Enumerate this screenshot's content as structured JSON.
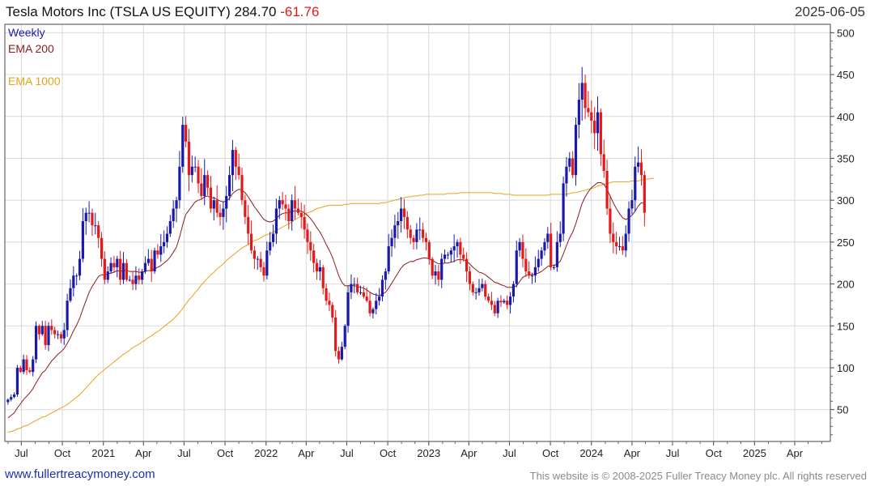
{
  "header": {
    "name": "Tesla Motors Inc (TSLA US EQUITY)",
    "price": "284.70",
    "change": "-61.76",
    "date": "2025-06-05"
  },
  "legend": {
    "frequency": "Weekly",
    "ema200_label": "EMA 200",
    "ema1000_label": "EMA 1000"
  },
  "footer": {
    "url": "www.fullertreacymoney.com",
    "copyright": "This website is © 2008-2025 Fuller Treacy Money plc. All rights reserved"
  },
  "colors": {
    "up": "#1a1aaa",
    "down": "#e31a1a",
    "ema200": "#8b1c1c",
    "ema1000": "#e8a317",
    "grid": "#d8d8d8",
    "frequency_label": "#1a1aaa"
  },
  "chart_data": {
    "type": "candlestick",
    "y_axis_side": "right",
    "ylim": [
      12,
      510
    ],
    "xlim": [
      "2020-05-25",
      "2025-06-20"
    ],
    "y_ticks": [
      50,
      100,
      150,
      200,
      250,
      300,
      350,
      400,
      450,
      500
    ],
    "x_ticks": [
      {
        "label": "Jul",
        "date": "2020-07-01"
      },
      {
        "label": "Oct",
        "date": "2020-10-01"
      },
      {
        "label": "2021",
        "date": "2021-01-01"
      },
      {
        "label": "Apr",
        "date": "2021-04-01"
      },
      {
        "label": "Jul",
        "date": "2021-07-01"
      },
      {
        "label": "Oct",
        "date": "2021-10-01"
      },
      {
        "label": "2022",
        "date": "2022-01-01"
      },
      {
        "label": "Apr",
        "date": "2022-04-01"
      },
      {
        "label": "Jul",
        "date": "2022-07-01"
      },
      {
        "label": "Oct",
        "date": "2022-10-01"
      },
      {
        "label": "2023",
        "date": "2023-01-01"
      },
      {
        "label": "Apr",
        "date": "2023-04-01"
      },
      {
        "label": "Jul",
        "date": "2023-07-01"
      },
      {
        "label": "Oct",
        "date": "2023-10-01"
      },
      {
        "label": "2024",
        "date": "2024-01-01"
      },
      {
        "label": "Apr",
        "date": "2024-04-01"
      },
      {
        "label": "Jul",
        "date": "2024-07-01"
      },
      {
        "label": "Oct",
        "date": "2024-10-01"
      },
      {
        "label": "2025",
        "date": "2025-01-01"
      },
      {
        "label": "Apr",
        "date": "2025-04-01"
      }
    ],
    "grid": true,
    "bar_period": "weekly",
    "first_bar_date": "2020-06-01",
    "close": [
      62,
      65,
      68,
      100,
      95,
      110,
      97,
      95,
      110,
      150,
      140,
      150,
      127,
      150,
      145,
      140,
      140,
      135,
      145,
      180,
      195,
      210,
      210,
      230,
      275,
      285,
      285,
      270,
      270,
      255,
      230,
      205,
      215,
      225,
      220,
      230,
      205,
      225,
      205,
      205,
      200,
      210,
      205,
      215,
      225,
      230,
      215,
      240,
      235,
      245,
      250,
      260,
      275,
      290,
      300,
      340,
      390,
      370,
      330,
      340,
      340,
      320,
      305,
      330,
      315,
      290,
      300,
      285,
      280,
      290,
      305,
      330,
      360,
      340,
      330,
      300,
      280,
      260,
      240,
      230,
      230,
      220,
      210,
      240,
      250,
      260,
      290,
      300,
      295,
      290,
      275,
      300,
      290,
      285,
      280,
      265,
      250,
      240,
      225,
      215,
      220,
      195,
      180,
      175,
      160,
      120,
      110,
      125,
      150,
      190,
      200,
      200,
      190,
      190,
      185,
      180,
      165,
      170,
      180,
      185,
      205,
      215,
      245,
      255,
      270,
      275,
      290,
      280,
      265,
      255,
      250,
      265,
      265,
      255,
      250,
      230,
      210,
      215,
      205,
      230,
      235,
      235,
      240,
      245,
      250,
      235,
      230,
      215,
      200,
      190,
      190,
      195,
      200,
      185,
      180,
      175,
      165,
      180,
      178,
      180,
      175,
      185,
      200,
      240,
      250,
      230,
      215,
      210,
      210,
      220,
      230,
      240,
      250,
      260,
      220,
      220,
      250,
      260,
      320,
      340,
      350,
      330,
      390,
      420,
      440,
      410,
      405,
      395,
      380,
      405,
      355,
      335,
      290,
      260,
      250,
      245,
      245,
      240,
      260,
      290,
      300,
      340,
      345,
      330,
      285
    ],
    "ema200": [
      40,
      43,
      46,
      52,
      57,
      62,
      66,
      70,
      75,
      82,
      88,
      94,
      97,
      103,
      108,
      112,
      116,
      119,
      123,
      129,
      136,
      144,
      151,
      159,
      170,
      180,
      190,
      197,
      203,
      209,
      211,
      211,
      212,
      213,
      214,
      216,
      215,
      216,
      216,
      215,
      215,
      215,
      214,
      214,
      215,
      216,
      216,
      218,
      220,
      222,
      225,
      228,
      232,
      238,
      244,
      256,
      271,
      283,
      288,
      293,
      298,
      300,
      301,
      304,
      305,
      303,
      303,
      301,
      299,
      298,
      299,
      302,
      308,
      311,
      313,
      312,
      309,
      304,
      298,
      292,
      287,
      282,
      277,
      275,
      274,
      275,
      278,
      282,
      284,
      285,
      285,
      287,
      287,
      287,
      287,
      285,
      282,
      278,
      273,
      267,
      262,
      255,
      247,
      240,
      232,
      221,
      210,
      202,
      198,
      198,
      198,
      198,
      197,
      196,
      195,
      193,
      190,
      188,
      187,
      186,
      188,
      190,
      195,
      201,
      207,
      213,
      219,
      223,
      225,
      227,
      227,
      229,
      230,
      231,
      231,
      230,
      228,
      226,
      224,
      224,
      225,
      225,
      226,
      227,
      229,
      229,
      229,
      227,
      224,
      220,
      217,
      214,
      213,
      211,
      208,
      205,
      202,
      201,
      199,
      198,
      196,
      196,
      196,
      198,
      203,
      208,
      210,
      211,
      211,
      212,
      213,
      215,
      218,
      221,
      222,
      222,
      224,
      227,
      236,
      246,
      255,
      262,
      272,
      284,
      296,
      304,
      310,
      315,
      318,
      321,
      321,
      319,
      313,
      305,
      297,
      290,
      284,
      279,
      277,
      279,
      282,
      287,
      293,
      297,
      296
    ],
    "ema1000": [
      23,
      24,
      25,
      27,
      28,
      30,
      31,
      33,
      35,
      37,
      39,
      41,
      42,
      44,
      46,
      48,
      50,
      52,
      54,
      56,
      59,
      62,
      65,
      68,
      72,
      76,
      80,
      84,
      88,
      92,
      95,
      98,
      101,
      104,
      107,
      110,
      113,
      116,
      118,
      121,
      124,
      126,
      128,
      131,
      133,
      136,
      138,
      141,
      143,
      146,
      149,
      152,
      155,
      158,
      162,
      166,
      171,
      176,
      181,
      185,
      190,
      194,
      199,
      203,
      207,
      211,
      214,
      218,
      221,
      224,
      228,
      231,
      234,
      237,
      240,
      243,
      245,
      247,
      250,
      252,
      253,
      255,
      257,
      259,
      260,
      262,
      264,
      266,
      268,
      270,
      272,
      274,
      277,
      279,
      281,
      283,
      285,
      286,
      288,
      290,
      291,
      292,
      293,
      294,
      294,
      294,
      294,
      294,
      295,
      295,
      296,
      296,
      296,
      296,
      296,
      296,
      296,
      296,
      296,
      296,
      297,
      297,
      298,
      299,
      300,
      301,
      302,
      303,
      304,
      304,
      305,
      305,
      306,
      306,
      307,
      307,
      307,
      307,
      307,
      307,
      307,
      308,
      308,
      308,
      308,
      309,
      309,
      309,
      309,
      309,
      309,
      309,
      309,
      309,
      309,
      309,
      308,
      308,
      308,
      307,
      307,
      307,
      306,
      306,
      306,
      306,
      306,
      306,
      306,
      306,
      306,
      306,
      306,
      306,
      307,
      307,
      307,
      307,
      307,
      307,
      308,
      309,
      309,
      310,
      311,
      312,
      313,
      314,
      315,
      317,
      318,
      319,
      320,
      321,
      322,
      322,
      322,
      322,
      322,
      322,
      323,
      323,
      323,
      324,
      325,
      325,
      326,
      326
    ]
  }
}
